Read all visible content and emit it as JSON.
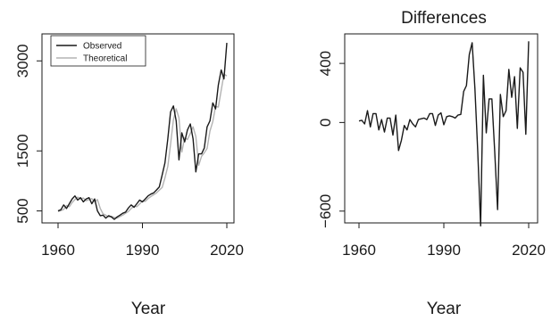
{
  "chart_data": [
    {
      "type": "line",
      "title": "",
      "xlabel": "Year",
      "ylabel": "",
      "xlim": [
        1960,
        2020
      ],
      "ylim": [
        300,
        3450
      ],
      "xticks": [
        1960,
        1990,
        2020
      ],
      "yticks": [
        500,
        1500,
        3000
      ],
      "legend": {
        "placement": "top-left",
        "entries": [
          "Observed",
          "Theoretical"
        ]
      },
      "x": [
        1960,
        1961,
        1962,
        1963,
        1964,
        1965,
        1966,
        1967,
        1968,
        1969,
        1970,
        1971,
        1972,
        1973,
        1974,
        1975,
        1976,
        1977,
        1978,
        1979,
        1980,
        1981,
        1982,
        1983,
        1984,
        1985,
        1986,
        1987,
        1988,
        1989,
        1990,
        1991,
        1992,
        1993,
        1994,
        1995,
        1996,
        1997,
        1998,
        1999,
        2000,
        2001,
        2002,
        2003,
        2004,
        2005,
        2006,
        2007,
        2008,
        2009,
        2010,
        2011,
        2012,
        2013,
        2014,
        2015,
        2016,
        2017,
        2018,
        2019,
        2020
      ],
      "series": [
        {
          "name": "Observed",
          "color": "#1a1a1a",
          "values": [
            500,
            520,
            600,
            540,
            620,
            700,
            750,
            680,
            720,
            650,
            700,
            720,
            620,
            700,
            500,
            420,
            430,
            380,
            420,
            400,
            360,
            400,
            430,
            460,
            480,
            550,
            600,
            560,
            620,
            680,
            650,
            700,
            750,
            780,
            800,
            850,
            900,
            1100,
            1300,
            1700,
            2150,
            2250,
            2000,
            1350,
            1800,
            1650,
            1850,
            1950,
            1700,
            1150,
            1450,
            1450,
            1550,
            1900,
            2000,
            2300,
            2200,
            2600,
            2850,
            2700,
            3300
          ]
        },
        {
          "name": "Theoretical",
          "color": "#b3b3b3",
          "values": [
            490,
            505,
            525,
            590,
            570,
            640,
            690,
            730,
            700,
            715,
            670,
            690,
            705,
            650,
            690,
            540,
            450,
            430,
            400,
            410,
            390,
            380,
            405,
            430,
            460,
            490,
            540,
            580,
            570,
            615,
            665,
            660,
            705,
            740,
            770,
            800,
            845,
            890,
            1050,
            1240,
            1610,
            2020,
            2200,
            2050,
            1480,
            1720,
            1690,
            1790,
            1900,
            1740,
            1260,
            1410,
            1470,
            1540,
            1830,
            1990,
            2240,
            2230,
            2510,
            2780,
            2750
          ]
        }
      ]
    },
    {
      "type": "line",
      "title": "Differences",
      "xlabel": "Year",
      "ylabel": "",
      "xlim": [
        1960,
        2020
      ],
      "ylim": [
        -680,
        600
      ],
      "xticks": [
        1960,
        1990,
        2020
      ],
      "yticks": [
        -600,
        0,
        400
      ],
      "x": [
        1960,
        1961,
        1962,
        1963,
        1964,
        1965,
        1966,
        1967,
        1968,
        1969,
        1970,
        1971,
        1972,
        1973,
        1974,
        1975,
        1976,
        1977,
        1978,
        1979,
        1980,
        1981,
        1982,
        1983,
        1984,
        1985,
        1986,
        1987,
        1988,
        1989,
        1990,
        1991,
        1992,
        1993,
        1994,
        1995,
        1996,
        1997,
        1998,
        1999,
        2000,
        2001,
        2002,
        2003,
        2004,
        2005,
        2006,
        2007,
        2008,
        2009,
        2010,
        2011,
        2012,
        2013,
        2014,
        2015,
        2016,
        2017,
        2018,
        2019,
        2020
      ],
      "series": [
        {
          "color": "#1a1a1a",
          "values": [
            10,
            15,
            -10,
            80,
            -30,
            60,
            60,
            -50,
            20,
            -65,
            30,
            30,
            -85,
            50,
            -190,
            -120,
            -20,
            -50,
            20,
            -10,
            -30,
            20,
            25,
            30,
            20,
            60,
            60,
            -20,
            50,
            65,
            -15,
            40,
            45,
            40,
            30,
            50,
            55,
            210,
            250,
            460,
            540,
            230,
            -200,
            -700,
            320,
            -70,
            160,
            160,
            -200,
            -590,
            190,
            40,
            80,
            360,
            170,
            310,
            -40,
            370,
            340,
            -80,
            550
          ]
        }
      ]
    }
  ]
}
